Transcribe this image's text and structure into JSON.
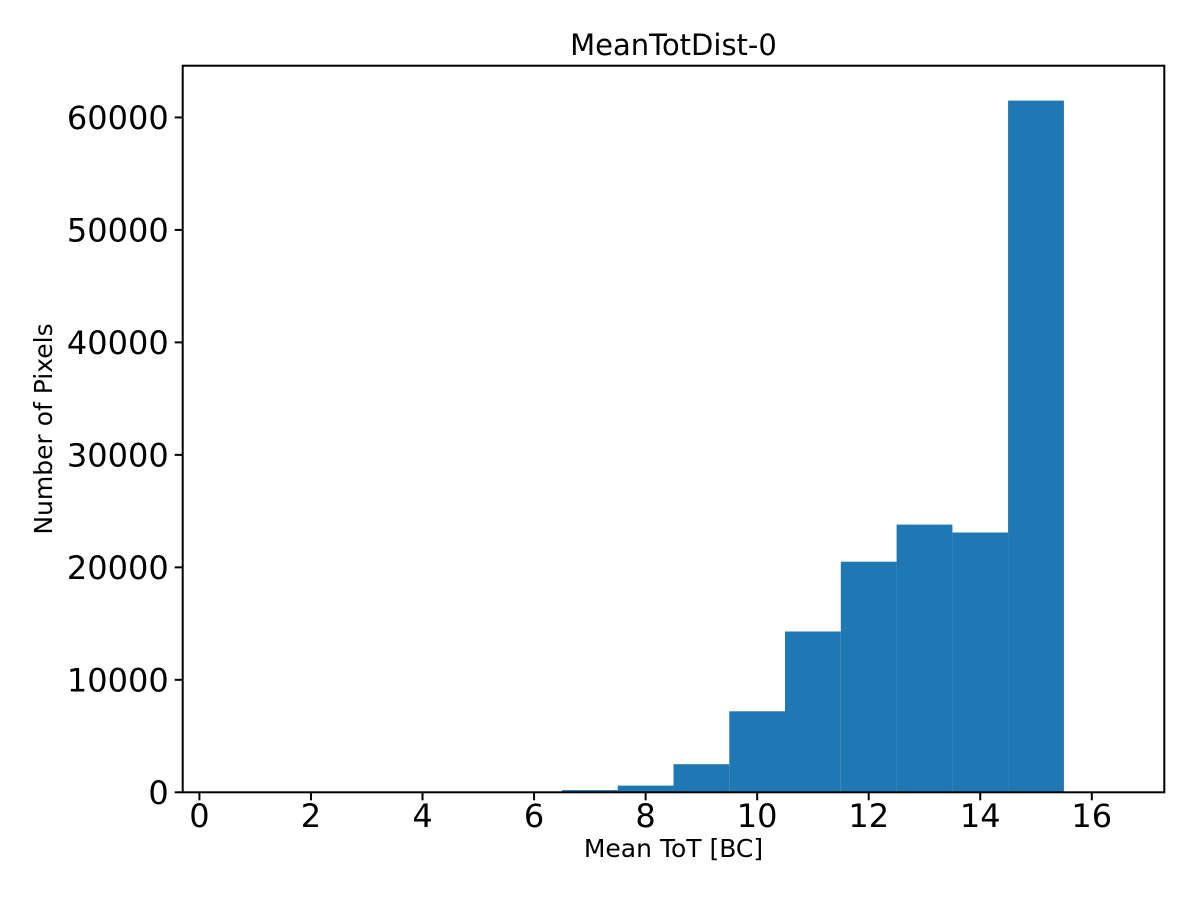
{
  "chart_data": {
    "type": "bar",
    "subtype": "histogram",
    "title": "MeanTotDist-0",
    "xlabel": "Mean ToT [BC]",
    "ylabel": "Number of Pixels",
    "bin_edges": [
      6.5,
      7.5,
      8.5,
      9.5,
      10.5,
      11.5,
      12.5,
      13.5,
      14.5,
      15.5
    ],
    "counts": [
      200,
      600,
      2500,
      7200,
      14300,
      20500,
      23800,
      23100,
      61500
    ],
    "xticks": [
      0,
      2,
      4,
      6,
      8,
      10,
      12,
      14,
      16
    ],
    "yticks": [
      0,
      10000,
      20000,
      30000,
      40000,
      50000,
      60000
    ],
    "xlim": [
      -0.3,
      17.3
    ],
    "ylim": [
      0,
      64600
    ],
    "grid": false,
    "legend": false,
    "bar_color": "#1f77b4",
    "axis_color": "#000000",
    "background_color": "#ffffff"
  }
}
